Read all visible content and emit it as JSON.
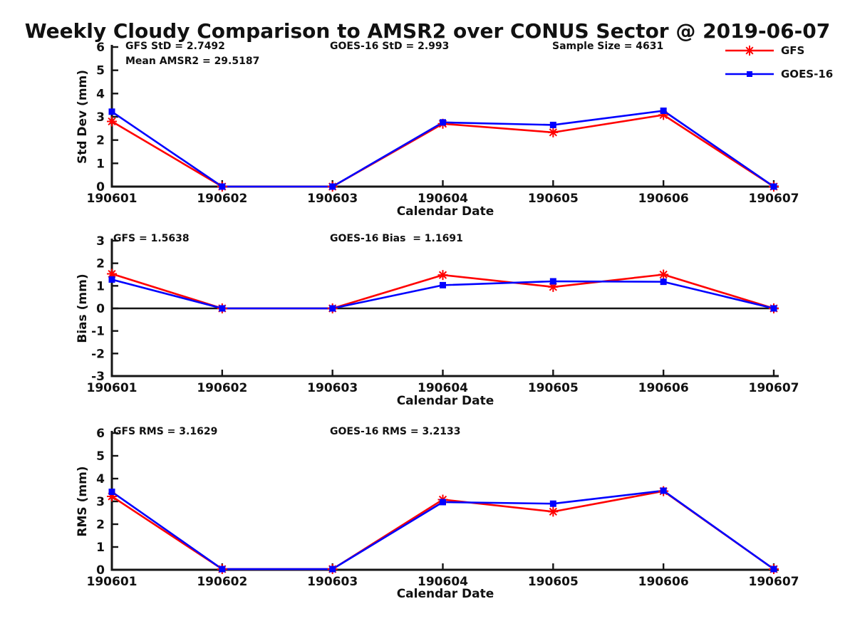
{
  "title": "Weekly Cloudy Comparison to AMSR2 over CONUS Sector @ 2019-06-07",
  "colors": {
    "gfs": "#ff0000",
    "goes16": "#0000ff",
    "axis": "#151515"
  },
  "legend": {
    "items": [
      {
        "label": "GFS",
        "color": "#ff0000",
        "marker": "asterisk"
      },
      {
        "label": "GOES-16",
        "color": "#0000ff",
        "marker": "square"
      }
    ]
  },
  "chart_data": [
    {
      "type": "line",
      "ylabel": "Std Dev (mm)",
      "xlabel": "Calendar Date",
      "ylim": [
        0,
        6
      ],
      "yticks": [
        0,
        1,
        2,
        3,
        4,
        5,
        6
      ],
      "categories": [
        "190601",
        "190602",
        "190603",
        "190604",
        "190605",
        "190606",
        "190607"
      ],
      "zero_line": false,
      "legend_position": "top-right",
      "annotations": {
        "gfs_std": "GFS StD = 2.7492",
        "mean_amsr2": "Mean AMSR2 = 29.5187",
        "goes_std": "GOES-16 StD = 2.993",
        "sample_size": "Sample Size = 4631"
      },
      "series": [
        {
          "name": "GFS",
          "color": "#ff0000",
          "marker": "asterisk",
          "values": [
            2.8,
            0,
            0,
            2.7,
            2.33,
            3.08,
            0
          ]
        },
        {
          "name": "GOES-16",
          "color": "#0000ff",
          "marker": "square",
          "values": [
            3.22,
            0,
            0,
            2.76,
            2.65,
            3.26,
            0
          ]
        }
      ]
    },
    {
      "type": "line",
      "ylabel": "Bias (mm)",
      "xlabel": "Calendar Date",
      "ylim": [
        -3,
        3
      ],
      "yticks": [
        -3,
        -2,
        -1,
        0,
        1,
        2,
        3
      ],
      "categories": [
        "190601",
        "190602",
        "190603",
        "190604",
        "190605",
        "190606",
        "190607"
      ],
      "zero_line": true,
      "annotations": {
        "gfs_bias": "GFS = 1.5638",
        "goes_bias": "GOES-16 Bias  = 1.1691"
      },
      "series": [
        {
          "name": "GFS",
          "color": "#ff0000",
          "marker": "asterisk",
          "values": [
            1.53,
            0,
            0,
            1.48,
            0.95,
            1.5,
            0
          ]
        },
        {
          "name": "GOES-16",
          "color": "#0000ff",
          "marker": "square",
          "values": [
            1.28,
            0,
            0,
            1.03,
            1.2,
            1.18,
            0
          ]
        }
      ]
    },
    {
      "type": "line",
      "ylabel": "RMS (mm)",
      "xlabel": "Calendar Date",
      "ylim": [
        0,
        6
      ],
      "yticks": [
        0,
        1,
        2,
        3,
        4,
        5,
        6
      ],
      "categories": [
        "190601",
        "190602",
        "190603",
        "190604",
        "190605",
        "190606",
        "190607"
      ],
      "zero_line": false,
      "annotations": {
        "gfs_rms": "GFS RMS = 3.1629",
        "goes_rms": "GOES-16 RMS = 3.2133"
      },
      "series": [
        {
          "name": "GFS",
          "color": "#ff0000",
          "marker": "asterisk",
          "values": [
            3.22,
            0.03,
            0.03,
            3.08,
            2.55,
            3.45,
            0.03
          ]
        },
        {
          "name": "GOES-16",
          "color": "#0000ff",
          "marker": "square",
          "values": [
            3.42,
            0.03,
            0.03,
            2.97,
            2.9,
            3.47,
            0.03
          ]
        }
      ]
    }
  ]
}
